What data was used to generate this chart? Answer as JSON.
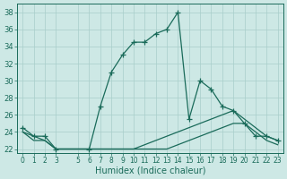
{
  "xlabel": "Humidex (Indice chaleur)",
  "bg_color": "#cde8e5",
  "grid_color": "#a8ceca",
  "line_color": "#1a6b5a",
  "hours": [
    0,
    1,
    2,
    3,
    4,
    5,
    6,
    7,
    8,
    9,
    10,
    11,
    12,
    13,
    14,
    15,
    16,
    17,
    18,
    19,
    20,
    21,
    22,
    23
  ],
  "main_y": [
    24.5,
    23.5,
    23.5,
    22.0,
    22.0,
    22.0,
    22.0,
    27.0,
    31.0,
    33.0,
    34.5,
    34.5,
    35.5,
    36.0,
    38.0,
    25.5,
    30.0,
    29.0,
    27.0,
    26.5,
    25.0,
    23.5,
    23.5,
    23.0
  ],
  "has_marker": [
    1,
    1,
    1,
    1,
    0,
    0,
    1,
    1,
    1,
    1,
    1,
    1,
    1,
    1,
    1,
    1,
    1,
    1,
    1,
    1,
    1,
    1,
    1,
    1
  ],
  "gap_before": [
    0,
    0,
    0,
    0,
    0,
    0,
    0,
    0,
    0,
    0,
    0,
    0,
    0,
    0,
    0,
    1,
    0,
    0,
    0,
    0,
    0,
    0,
    0,
    0
  ],
  "flat1_y": [
    24.0,
    23.5,
    23.0,
    22.0,
    22.0,
    22.0,
    22.0,
    22.0,
    22.0,
    22.0,
    22.0,
    22.5,
    23.0,
    23.5,
    24.0,
    24.5,
    25.0,
    25.5,
    26.0,
    26.5,
    25.5,
    24.5,
    23.5,
    23.0
  ],
  "flat2_y": [
    24.0,
    23.0,
    23.0,
    22.0,
    22.0,
    22.0,
    22.0,
    22.0,
    22.0,
    22.0,
    22.0,
    22.0,
    22.0,
    22.0,
    22.5,
    23.0,
    23.5,
    24.0,
    24.5,
    25.0,
    25.0,
    24.0,
    23.0,
    22.5
  ],
  "ylim": [
    21.5,
    39.0
  ],
  "xlim": [
    -0.5,
    23.5
  ],
  "yticks": [
    22,
    24,
    26,
    28,
    30,
    32,
    34,
    36,
    38
  ],
  "xticks": [
    0,
    1,
    2,
    3,
    5,
    6,
    7,
    8,
    9,
    10,
    11,
    12,
    13,
    14,
    15,
    16,
    17,
    18,
    19,
    20,
    21,
    22,
    23
  ]
}
